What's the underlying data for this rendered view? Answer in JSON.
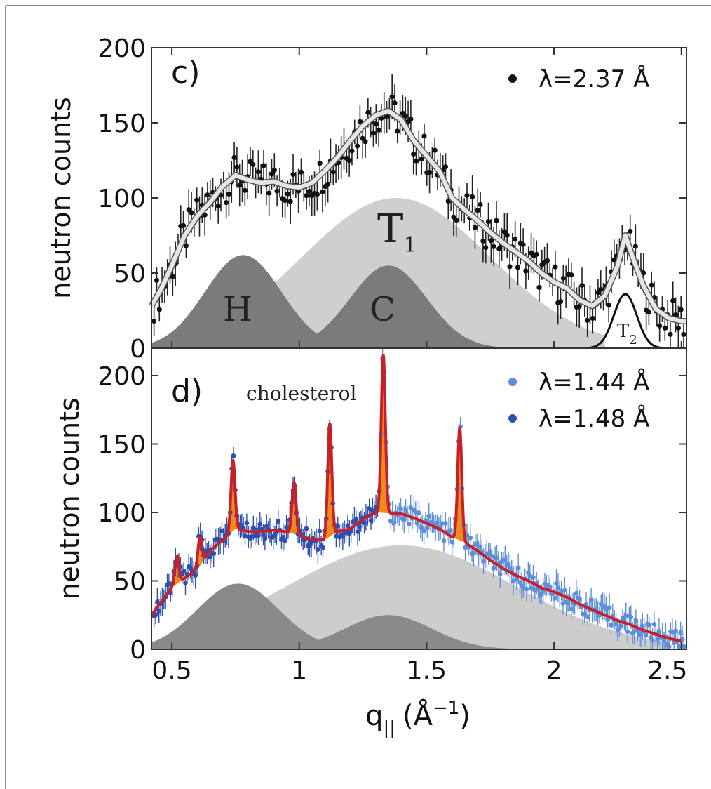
{
  "chart_data": [
    {
      "type": "scatter",
      "panel_label": "c)",
      "ylabel": "neutron counts",
      "xlim": [
        0.42,
        2.52
      ],
      "ylim": [
        0,
        200
      ],
      "yticks": [
        0,
        50,
        100,
        150,
        200
      ],
      "ytick_labels": [
        "0",
        "50",
        "100",
        "150",
        "200"
      ],
      "legend": {
        "position": "top-right",
        "entries": [
          "λ=2.37 Å"
        ]
      },
      "colors": {
        "points": "#111111",
        "fit": "#e6e6e6",
        "component_dark": "#7b7b7b",
        "component_light": "#cfcfcf"
      },
      "components": [
        {
          "label": "H",
          "center": 0.78,
          "amplitude": 62,
          "width": 0.15,
          "shade": "dark"
        },
        {
          "label": "C",
          "center": 1.35,
          "amplitude": 55,
          "width": 0.15,
          "shade": "dark"
        },
        {
          "label": "T",
          "label_sub": "1",
          "center": 1.38,
          "amplitude": 100,
          "width": 0.37,
          "shade": "light"
        },
        {
          "label": "T",
          "label_sub": "2",
          "center": 2.28,
          "amplitude": 36,
          "width": 0.045,
          "shade": "line"
        }
      ],
      "series": [
        {
          "name": "λ=2.37 Å",
          "x": [
            0.42,
            0.46,
            0.5,
            0.55,
            0.6,
            0.65,
            0.7,
            0.75,
            0.8,
            0.85,
            0.9,
            0.95,
            1.0,
            1.05,
            1.1,
            1.15,
            1.2,
            1.25,
            1.3,
            1.35,
            1.4,
            1.45,
            1.5,
            1.55,
            1.6,
            1.65,
            1.7,
            1.75,
            1.8,
            1.85,
            1.9,
            1.95,
            2.0,
            2.05,
            2.1,
            2.15,
            2.2,
            2.25,
            2.28,
            2.31,
            2.35,
            2.4,
            2.45,
            2.5
          ],
          "y": [
            28,
            40,
            55,
            75,
            88,
            97,
            108,
            115,
            112,
            110,
            111,
            108,
            107,
            110,
            118,
            127,
            138,
            148,
            155,
            158,
            152,
            138,
            128,
            118,
            100,
            92,
            85,
            77,
            70,
            64,
            58,
            50,
            44,
            40,
            32,
            28,
            35,
            55,
            75,
            60,
            42,
            26,
            20,
            18
          ]
        }
      ]
    },
    {
      "type": "scatter",
      "panel_label": "d)",
      "annotation": "cholesterol",
      "ylabel": "neutron counts",
      "xlabel": "q",
      "xlabel_sub": "||",
      "xlabel_unit_open": "(Å",
      "xlabel_unit_sup": "−1",
      "xlabel_unit_close": ")",
      "xlim": [
        0.42,
        2.52
      ],
      "ylim": [
        0,
        220
      ],
      "xticks": [
        0.5,
        1,
        1.5,
        2,
        2.5
      ],
      "xtick_labels": [
        "0.5",
        "1",
        "1.5",
        "2",
        "2.5"
      ],
      "yticks": [
        0,
        50,
        100,
        150,
        200
      ],
      "ytick_labels": [
        "0",
        "50",
        "100",
        "150",
        "200"
      ],
      "legend": {
        "position": "top-right",
        "entries": [
          "λ=1.44 Å",
          "λ=1.48 Å"
        ]
      },
      "colors": {
        "series_1": "#5e8fd8",
        "series_2": "#2f4fb0",
        "fit": "#c8202a",
        "peaks": "#ef8a1c",
        "component_dark": "#8a8a8a",
        "component_light": "#cdcdcd"
      },
      "components": [
        {
          "center": 0.76,
          "amplitude": 48,
          "width": 0.16,
          "shade": "dark"
        },
        {
          "center": 1.35,
          "amplitude": 25,
          "width": 0.17,
          "shade": "dark"
        },
        {
          "center": 1.4,
          "amplitude": 76,
          "width": 0.45,
          "shade": "light"
        }
      ],
      "peaks": [
        {
          "center": 0.52,
          "height": 68
        },
        {
          "center": 0.61,
          "height": 82
        },
        {
          "center": 0.74,
          "height": 138
        },
        {
          "center": 0.98,
          "height": 122
        },
        {
          "center": 1.12,
          "height": 165
        },
        {
          "center": 1.33,
          "height": 215
        },
        {
          "center": 1.63,
          "height": 162
        }
      ],
      "series": [
        {
          "name": "λ=1.44 Å",
          "x": [
            1.35,
            1.4,
            1.45,
            1.5,
            1.55,
            1.6,
            1.65,
            1.7,
            1.75,
            1.8,
            1.85,
            1.9,
            1.95,
            2.0,
            2.05,
            2.1,
            2.15,
            2.2,
            2.25,
            2.3,
            2.35,
            2.4,
            2.45,
            2.5
          ],
          "y": [
            102,
            99,
            96,
            92,
            88,
            82,
            78,
            72,
            65,
            59,
            54,
            50,
            45,
            42,
            38,
            33,
            29,
            25,
            21,
            18,
            14,
            11,
            8,
            6
          ]
        },
        {
          "name": "λ=1.48 Å",
          "x": [
            0.42,
            0.46,
            0.5,
            0.55,
            0.6,
            0.65,
            0.7,
            0.75,
            0.8,
            0.85,
            0.9,
            0.95,
            1.0,
            1.05,
            1.1,
            1.15,
            1.2,
            1.25,
            1.3
          ],
          "y": [
            25,
            35,
            45,
            52,
            58,
            72,
            80,
            88,
            86,
            86,
            87,
            86,
            83,
            80,
            80,
            86,
            88,
            95,
            100
          ]
        }
      ]
    }
  ]
}
